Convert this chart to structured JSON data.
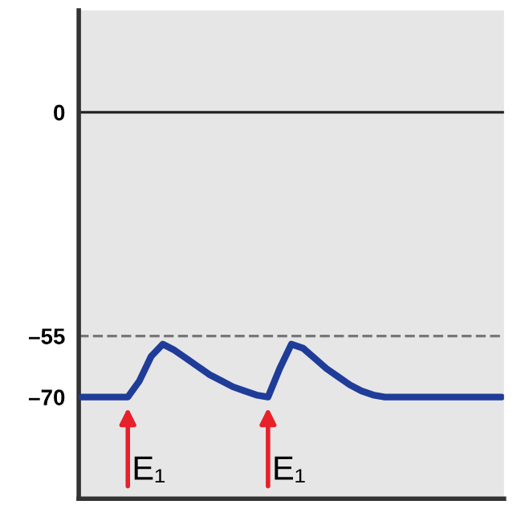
{
  "chart_data": {
    "type": "line",
    "categories": [
      null,
      null,
      null,
      null,
      null,
      null,
      null,
      null,
      null,
      null,
      null,
      null,
      null,
      null,
      null,
      null,
      null,
      null,
      null,
      null,
      null,
      null,
      null,
      null,
      null,
      null,
      null,
      null,
      null,
      null,
      null,
      null,
      null,
      null,
      null,
      null,
      null
    ],
    "series": [
      {
        "color": "#1f3c99",
        "values": [
          -70,
          -70,
          -70,
          -70,
          -70,
          -66,
          -60,
          -57,
          -58.5,
          -60.5,
          -62.5,
          -64.5,
          -66,
          -67.5,
          -68.5,
          -69.5,
          -70,
          -63,
          -57,
          -58,
          -60.5,
          -63,
          -65,
          -67,
          -68.5,
          -69.5,
          -70,
          -70,
          -70,
          -70,
          -70,
          -70,
          -70,
          -70,
          -70,
          -70,
          -70
        ]
      }
    ],
    "ylim": [
      -95,
      25
    ],
    "yticks": [
      {
        "value": 0,
        "label": "0"
      },
      {
        "value": -55,
        "label": "–55"
      },
      {
        "value": -70,
        "label": "–70"
      }
    ],
    "ref_lines": [
      {
        "axis": "y",
        "value": 0,
        "color": "#222222",
        "line_style": "solid"
      },
      {
        "axis": "y",
        "value": -55,
        "color": "#777777",
        "line_style": "dashed"
      }
    ],
    "annotations": [
      "E₁",
      "E₁"
    ],
    "tick_labels": "y",
    "grid": false,
    "marker": "none",
    "line_style": "solid"
  }
}
